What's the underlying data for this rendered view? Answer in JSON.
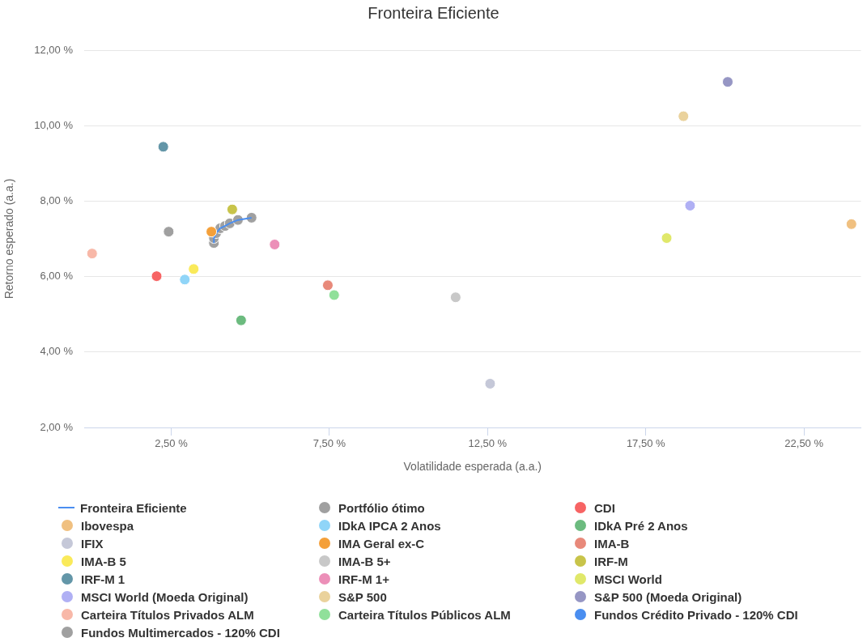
{
  "chart_data": {
    "type": "scatter",
    "title": "Fronteira Eficiente",
    "xlabel": "Volatilidade esperada (a.a.)",
    "ylabel": "Retorno esperado (a.a.)",
    "xlim": [
      -0.25,
      24.3
    ],
    "ylim": [
      2,
      12
    ],
    "xticks": [
      {
        "value": 2.5,
        "label": "2,50 %"
      },
      {
        "value": 7.5,
        "label": "7,50 %"
      },
      {
        "value": 12.5,
        "label": "12,50 %"
      },
      {
        "value": 17.5,
        "label": "17,50 %"
      },
      {
        "value": 22.5,
        "label": "22,50 %"
      }
    ],
    "yticks": [
      {
        "value": 2,
        "label": "2,00 %"
      },
      {
        "value": 4,
        "label": "4,00 %"
      },
      {
        "value": 6,
        "label": "6,00 %"
      },
      {
        "value": 8,
        "label": "8,00 %"
      },
      {
        "value": 10,
        "label": "10,00 %"
      },
      {
        "value": 12,
        "label": "12,00 %"
      }
    ],
    "grid": "y",
    "legend": "bottom",
    "marker": "circle",
    "series": [
      {
        "name": "Fronteira Eficiente",
        "type": "line",
        "marker": "none",
        "line_style": "solid",
        "color": "#4a8ef0",
        "x": [
          3.85,
          3.85,
          3.92,
          4.05,
          4.2,
          4.35,
          4.61,
          5.04
        ],
        "values": [
          6.89,
          7.02,
          7.15,
          7.28,
          7.34,
          7.41,
          7.5,
          7.56
        ]
      },
      {
        "name": "Portfólio ótimo",
        "color": "#a0a0a0",
        "x": [
          3.85,
          3.85,
          3.92,
          4.05,
          4.2,
          4.35,
          4.61,
          5.04
        ],
        "values": [
          6.89,
          7.02,
          7.15,
          7.28,
          7.34,
          7.41,
          7.5,
          7.56
        ]
      },
      {
        "name": "CDI",
        "color": "#f76464",
        "x": [
          2.04
        ],
        "values": [
          6.01
        ]
      },
      {
        "name": "Ibovespa",
        "color": "#f0c080",
        "x": [
          24.0
        ],
        "values": [
          7.39
        ]
      },
      {
        "name": "IDkA IPCA 2 Anos",
        "color": "#90d5f8",
        "x": [
          2.93
        ],
        "values": [
          5.92
        ]
      },
      {
        "name": "IDkA Pré 2 Anos",
        "color": "#6cbb7f",
        "x": [
          4.71
        ],
        "values": [
          4.84
        ]
      },
      {
        "name": "IFIX",
        "color": "#c5c8d8",
        "x": [
          12.58
        ],
        "values": [
          3.16
        ]
      },
      {
        "name": "IMA Geral ex-C",
        "color": "#f4a03a",
        "x": [
          3.77
        ],
        "values": [
          7.19
        ]
      },
      {
        "name": "IMA-B",
        "color": "#e8897a",
        "x": [
          7.45
        ],
        "values": [
          5.77
        ]
      },
      {
        "name": "IMA-B 5",
        "color": "#faea5a",
        "x": [
          3.21
        ],
        "values": [
          6.2
        ]
      },
      {
        "name": "IMA-B 5+",
        "color": "#c8c8c8",
        "x": [
          11.49
        ],
        "values": [
          5.45
        ]
      },
      {
        "name": "IRF-M",
        "color": "#c8c44a",
        "x": [
          4.43
        ],
        "values": [
          7.78
        ]
      },
      {
        "name": "IRF-M 1",
        "color": "#6396a8",
        "x": [
          2.25
        ],
        "values": [
          9.44
        ]
      },
      {
        "name": "IRF-M 1+",
        "color": "#ec8fb8",
        "x": [
          5.77
        ],
        "values": [
          6.85
        ]
      },
      {
        "name": "MSCI World",
        "color": "#e0e86a",
        "x": [
          18.16
        ],
        "values": [
          7.02
        ]
      },
      {
        "name": "MSCI World (Moeda Original)",
        "color": "#b0b0f4",
        "x": [
          18.9
        ],
        "values": [
          7.88
        ]
      },
      {
        "name": "S&P 500",
        "color": "#ead29c",
        "x": [
          18.69
        ],
        "values": [
          10.25
        ]
      },
      {
        "name": "S&P 500 (Moeda Original)",
        "color": "#9696c4",
        "x": [
          20.09
        ],
        "values": [
          11.16
        ]
      },
      {
        "name": "Carteira Títulos Privados ALM",
        "color": "#f8b8a8",
        "x": [
          0.0
        ],
        "values": [
          6.61
        ]
      },
      {
        "name": "Carteira Títulos Públicos ALM",
        "color": "#90e09a",
        "x": [
          7.65
        ],
        "values": [
          5.51
        ]
      },
      {
        "name": "Fundos Crédito Privado - 120% CDI",
        "color": "#4a8ef0",
        "x": [
          null
        ],
        "values": [
          null
        ]
      },
      {
        "name": "Fundos Multimercados - 120% CDI",
        "color": "#a0a0a0",
        "x": [
          2.42
        ],
        "values": [
          7.19
        ]
      }
    ]
  }
}
